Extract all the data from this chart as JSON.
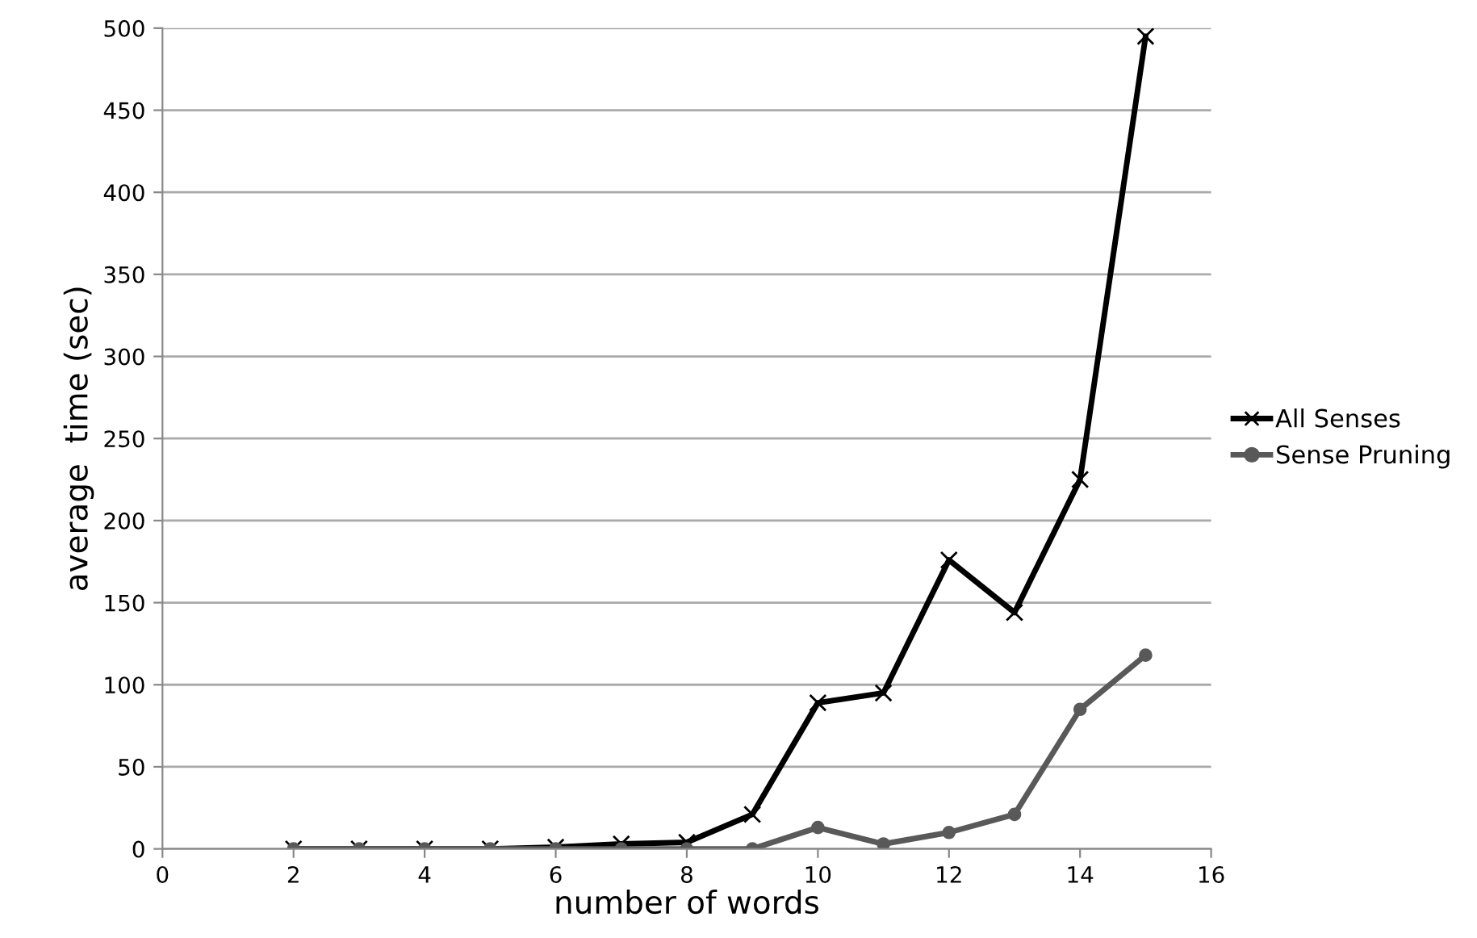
{
  "chart_data": {
    "type": "line",
    "xlabel": "number of words",
    "ylabel": "average  time (sec)",
    "x": [
      2,
      3,
      4,
      5,
      6,
      7,
      8,
      9,
      10,
      11,
      12,
      13,
      14,
      15
    ],
    "series": [
      {
        "name": "All Senses",
        "color": "#000000",
        "marker": "cross",
        "values": [
          0,
          0,
          0,
          0,
          1,
          3,
          4,
          21,
          89,
          95,
          176,
          144,
          225,
          495
        ]
      },
      {
        "name": "Sense Pruning",
        "color": "#595959",
        "marker": "circle",
        "values": [
          0,
          0,
          0,
          0,
          0,
          0,
          0,
          0,
          13,
          3,
          10,
          21,
          85,
          118
        ]
      }
    ],
    "xlim": [
      0,
      16
    ],
    "xticks": [
      0,
      2,
      4,
      6,
      8,
      10,
      12,
      14,
      16
    ],
    "ylim": [
      0,
      500
    ],
    "yticks": [
      0,
      50,
      100,
      150,
      200,
      250,
      300,
      350,
      400,
      450,
      500
    ],
    "grid": "y",
    "legend": "right",
    "line_style": "solid"
  }
}
